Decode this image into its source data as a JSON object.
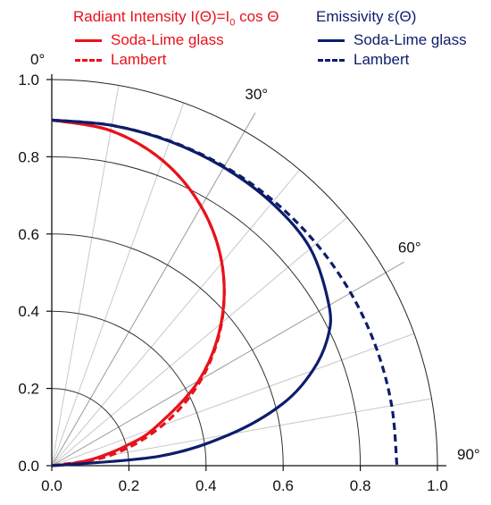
{
  "chart_data": {
    "type": "line",
    "polar": true,
    "r_axis": {
      "range": [
        0,
        1.0
      ],
      "ticks": [
        "0.0",
        "0.2",
        "0.4",
        "0.6",
        "0.8",
        "1.0"
      ]
    },
    "x_axis": {
      "range": [
        0,
        1.0
      ],
      "ticks": [
        "0.0",
        "0.2",
        "0.4",
        "0.6",
        "0.8",
        "1.0"
      ]
    },
    "angle_labels": [
      "0°",
      "30°",
      "60°",
      "90°"
    ],
    "angle_gridlines_deg": [
      0,
      10,
      20,
      30,
      40,
      50,
      60,
      70,
      80,
      90
    ],
    "grid": true,
    "legend_groups": [
      {
        "title_main": "Radiant Intensity I(Θ)=I",
        "title_sub": "0",
        "title_tail": " cos Θ",
        "color": "#e8121b",
        "entries": [
          "Soda-Lime glass",
          "Lambert"
        ]
      },
      {
        "title_main": "Emissivity ε(Θ)",
        "color": "#0d1d6b",
        "entries": [
          "Soda-Lime glass",
          "Lambert"
        ]
      }
    ],
    "series": [
      {
        "name": "Soda-Lime glass",
        "group": "Radiant Intensity",
        "color": "#e8121b",
        "style": "solid",
        "theta_deg": [
          0,
          10,
          20,
          30,
          40,
          50,
          60,
          70,
          75,
          80,
          85,
          90
        ],
        "r": [
          0.895,
          0.881,
          0.841,
          0.775,
          0.686,
          0.573,
          0.44,
          0.283,
          0.2,
          0.12,
          0.05,
          0.0
        ]
      },
      {
        "name": "Lambert",
        "group": "Radiant Intensity",
        "color": "#e8121b",
        "style": "dashed",
        "theta_deg": [
          0,
          10,
          20,
          30,
          40,
          50,
          60,
          70,
          80,
          90
        ],
        "r": [
          0.895,
          0.881,
          0.841,
          0.775,
          0.686,
          0.575,
          0.448,
          0.306,
          0.155,
          0.0
        ]
      },
      {
        "name": "Soda-Lime glass",
        "group": "Emissivity",
        "color": "#0d1d6b",
        "style": "solid",
        "theta_deg": [
          0,
          10,
          20,
          30,
          40,
          50,
          60,
          65,
          70,
          75,
          80,
          85,
          90
        ],
        "r": [
          0.895,
          0.895,
          0.894,
          0.892,
          0.888,
          0.875,
          0.83,
          0.79,
          0.72,
          0.62,
          0.47,
          0.28,
          0.0
        ]
      },
      {
        "name": "Lambert",
        "group": "Emissivity",
        "color": "#0d1d6b",
        "style": "dashed",
        "theta_deg": [
          0,
          10,
          20,
          30,
          40,
          50,
          60,
          70,
          80,
          90
        ],
        "r": [
          0.895,
          0.895,
          0.895,
          0.895,
          0.895,
          0.895,
          0.895,
          0.895,
          0.895,
          0.895
        ]
      }
    ]
  }
}
